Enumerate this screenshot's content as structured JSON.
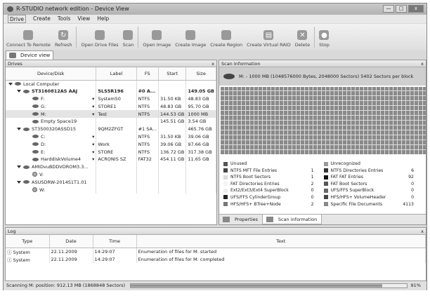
{
  "window": {
    "title": "R-STUDIO network edition - Device View",
    "min": "—",
    "max": "□",
    "close": "x"
  },
  "menu": [
    "Drive",
    "Create",
    "Tools",
    "View",
    "Help"
  ],
  "toolbar": [
    {
      "label": "Connect To Remote",
      "icon": "connect-remote-icon"
    },
    {
      "label": "Refresh",
      "icon": "refresh-icon"
    },
    {
      "label": "Open Drive Files",
      "icon": "open-drive-files-icon"
    },
    {
      "label": "Scan",
      "icon": "scan-icon"
    },
    {
      "label": "Open Image",
      "icon": "open-image-icon"
    },
    {
      "label": "Create Image",
      "icon": "create-image-icon"
    },
    {
      "label": "Create Region",
      "icon": "create-region-icon"
    },
    {
      "label": "Create Virtual RAID",
      "icon": "create-raid-icon"
    },
    {
      "label": "Delete",
      "icon": "delete-icon"
    },
    {
      "label": "Stop",
      "icon": "stop-icon"
    }
  ],
  "doc_tab": "Device view",
  "drives": {
    "title": "Drives",
    "close": "x",
    "columns": [
      "Device/Disk",
      "Label",
      "FS",
      "Start",
      "Size"
    ],
    "rows": [
      {
        "name": "Local Computer",
        "label": "",
        "fs": "",
        "start": "",
        "size": "",
        "level": 0,
        "kind": "computer"
      },
      {
        "name": "ST3160812AS AAJ",
        "label": "5LS5R196",
        "fs": "#0 A...",
        "start": "",
        "size": "149.05 GB",
        "level": 1,
        "kind": "disk",
        "bold": true
      },
      {
        "name": "F:",
        "label": "System50",
        "fs": "NTFS",
        "start": "31.50 KB",
        "size": "48.83 GB",
        "level": 2,
        "kind": "part"
      },
      {
        "name": "G:",
        "label": "STORE1",
        "fs": "NTFS",
        "start": "48.83 GB",
        "size": "95.70 GB",
        "level": 2,
        "kind": "part"
      },
      {
        "name": "M:",
        "label": "Test",
        "fs": "NTFS",
        "start": "144.53 GB",
        "size": "1000 MB",
        "level": 2,
        "kind": "part",
        "sel": true
      },
      {
        "name": "Empty Space19",
        "label": "",
        "fs": "",
        "start": "145.51 GB",
        "size": "3.54 GB",
        "level": 2,
        "kind": "empty"
      },
      {
        "name": "ST3500320ASSD15",
        "label": "9QM2ZFGT",
        "fs": "#1 SA...",
        "start": "",
        "size": "465.76 GB",
        "level": 1,
        "kind": "disk"
      },
      {
        "name": "C:",
        "label": "",
        "fs": "NTFS",
        "start": "31.50 KB",
        "size": "39.06 GB",
        "level": 2,
        "kind": "part"
      },
      {
        "name": "D:",
        "label": "Work",
        "fs": "NTFS",
        "start": "39.06 GB",
        "size": "97.66 GB",
        "level": 2,
        "kind": "part"
      },
      {
        "name": "E:",
        "label": "STORE",
        "fs": "NTFS",
        "start": "136.72 GB",
        "size": "317.38 GB",
        "level": 2,
        "kind": "part"
      },
      {
        "name": "HarddiskVolume4",
        "label": "ACRONIS SZ",
        "fs": "FAT32",
        "start": "454.11 GB",
        "size": "11.65 GB",
        "level": 2,
        "kind": "part"
      },
      {
        "name": "AMIDvuBDDVDROM3.3...",
        "label": "",
        "fs": "",
        "start": "",
        "size": "",
        "level": 1,
        "kind": "disk"
      },
      {
        "name": "V:",
        "label": "",
        "fs": "",
        "start": "",
        "size": "",
        "level": 2,
        "kind": "cd"
      },
      {
        "name": "ASUSDRW-2014S1T1.01",
        "label": "",
        "fs": "",
        "start": "",
        "size": "",
        "level": 1,
        "kind": "disk"
      },
      {
        "name": "W:",
        "label": "",
        "fs": "",
        "start": "",
        "size": "",
        "level": 2,
        "kind": "cd"
      }
    ]
  },
  "scan": {
    "title": "Scan Information",
    "close": "x",
    "header": "M: - 1000 MB (1048576000 Bytes, 2048000 Sectors) 5402 Sectors per block",
    "legend": [
      {
        "label": "Unused",
        "count": "",
        "color": "#555555"
      },
      {
        "label": "Unrecognized",
        "count": "",
        "color": "#999999"
      },
      {
        "label": "NTFS MFT File Entries",
        "count": "1",
        "color": "#444444"
      },
      {
        "label": "NTFS Directories Entries",
        "count": "6",
        "color": "#333333"
      },
      {
        "label": "NTFS Boot Sectors",
        "count": "1",
        "color": "#dddddd"
      },
      {
        "label": "FAT FAT Entries",
        "count": "92",
        "color": "#111111"
      },
      {
        "label": "FAT Directories Entries",
        "count": "2",
        "color": "#f4f4f4"
      },
      {
        "label": "FAT Boot Sectors",
        "count": "0",
        "color": "#555555"
      },
      {
        "label": "Ext2/Ext3/Ext4 SuperBlock",
        "count": "0",
        "color": "#eeeeee"
      },
      {
        "label": "UFS/FFS SuperBlock",
        "count": "0",
        "color": "#666666"
      },
      {
        "label": "UFS/FFS CylinderGroup",
        "count": "0",
        "color": "#222222"
      },
      {
        "label": "HFS/HFS+ VolumeHeader",
        "count": "0",
        "color": "#444444"
      },
      {
        "label": "HFS/HFS+ BTree+Node",
        "count": "2",
        "color": "#777777"
      },
      {
        "label": "Specific File Documents",
        "count": "4113",
        "color": "#888888"
      }
    ],
    "tabs": [
      "Properties",
      "Scan information"
    ]
  },
  "log": {
    "title": "Log",
    "close": "x",
    "columns": [
      "Type",
      "Date",
      "Time",
      "Text"
    ],
    "rows": [
      {
        "type": "System",
        "date": "22.11.2009",
        "time": "14:29:07",
        "text": "Enumeration of files for M: started"
      },
      {
        "type": "System",
        "date": "22.11.2009",
        "time": "14:29:07",
        "text": "Enumeration of files for M: completed"
      }
    ]
  },
  "status": {
    "text": "Scanning M: position: 912.13 MB (1868848 Sectors)",
    "progress_percent": 91,
    "percent_label": "91%"
  }
}
